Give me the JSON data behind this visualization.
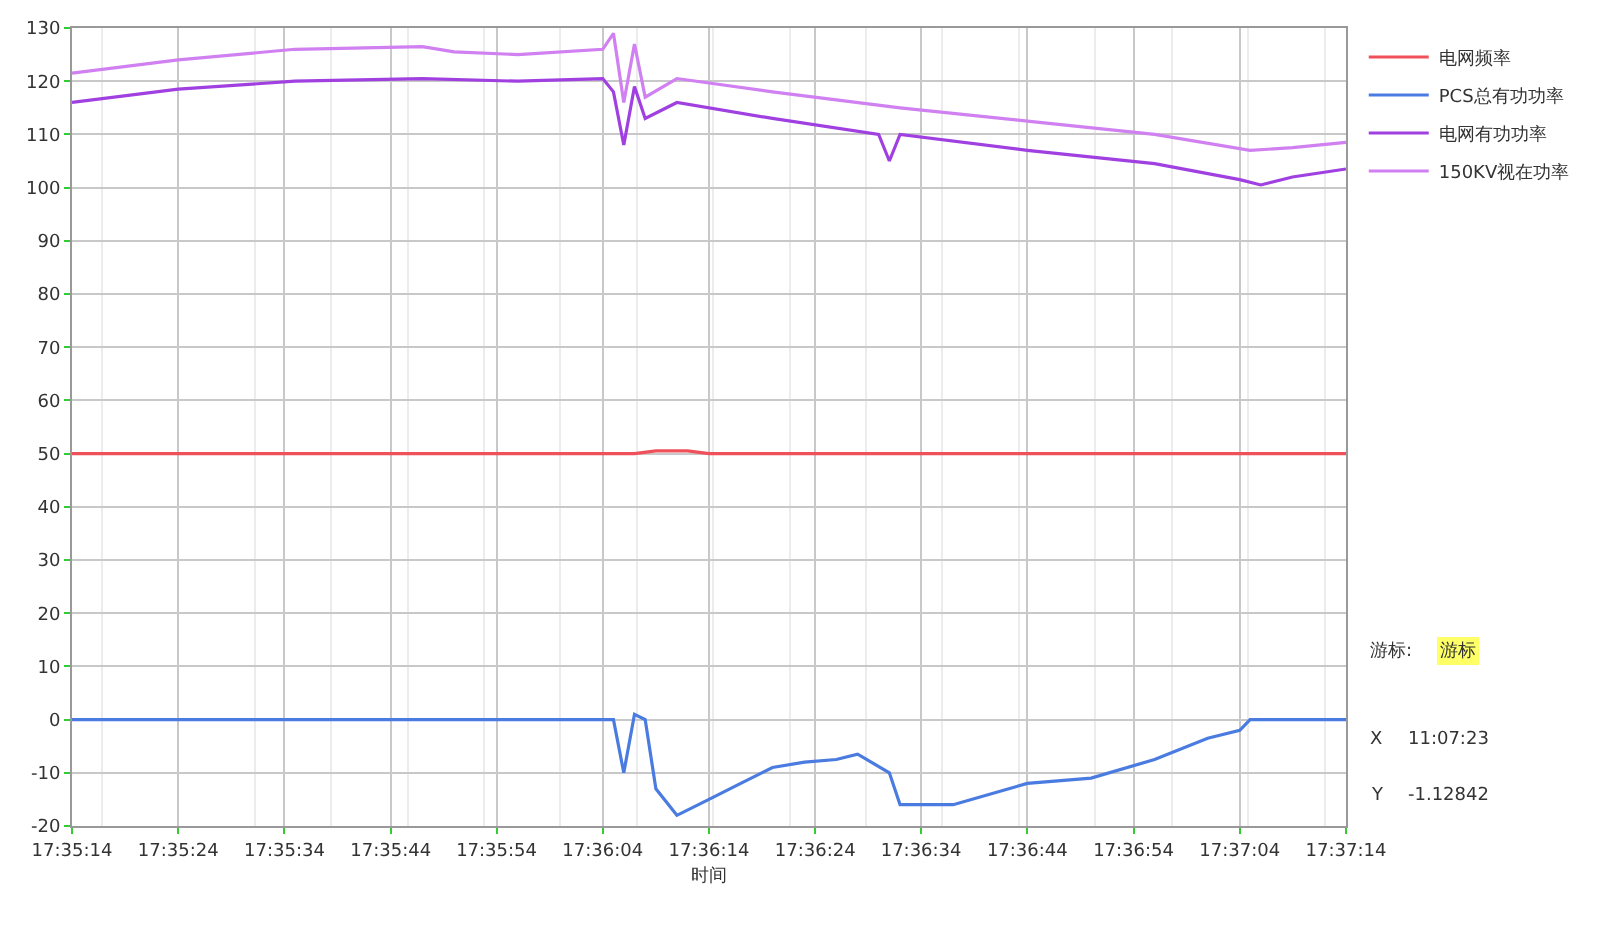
{
  "chart_data": {
    "type": "line",
    "xlabel": "时间",
    "xlim": [
      17.58722,
      17.62056
    ],
    "ylim": [
      -20,
      130
    ],
    "xticks": [
      {
        "value": 17.58722,
        "label": "17:35:14"
      },
      {
        "value": 17.59,
        "label": "17:35:24"
      },
      {
        "value": 17.59278,
        "label": "17:35:34"
      },
      {
        "value": 17.59556,
        "label": "17:35:44"
      },
      {
        "value": 17.59833,
        "label": "17:35:54"
      },
      {
        "value": 17.60111,
        "label": "17:36:04"
      },
      {
        "value": 17.60389,
        "label": "17:36:14"
      },
      {
        "value": 17.60667,
        "label": "17:36:24"
      },
      {
        "value": 17.60944,
        "label": "17:36:34"
      },
      {
        "value": 17.61222,
        "label": "17:36:44"
      },
      {
        "value": 17.615,
        "label": "17:36:54"
      },
      {
        "value": 17.61778,
        "label": "17:37:04"
      },
      {
        "value": 17.62056,
        "label": "17:37:14"
      }
    ],
    "yticks": [
      -20,
      -10,
      0,
      10,
      20,
      30,
      40,
      50,
      60,
      70,
      80,
      90,
      100,
      110,
      120,
      130
    ],
    "grid": true,
    "legend": "right",
    "line_style": "solid",
    "marker": "none",
    "series": [
      {
        "name": "电网频率",
        "color": "#f0505a",
        "x": [
          17.58722,
          17.60194,
          17.6025,
          17.60333,
          17.60389,
          17.62056
        ],
        "values": [
          50,
          50,
          50.5,
          50.5,
          50,
          50
        ]
      },
      {
        "name": "PCS总有功功率",
        "color": "#4a7be0",
        "x": [
          17.58722,
          17.60111,
          17.60139,
          17.60166,
          17.60194,
          17.60222,
          17.6025,
          17.60305,
          17.60389,
          17.60472,
          17.60555,
          17.60639,
          17.60722,
          17.60778,
          17.60861,
          17.60889,
          17.60944,
          17.61028,
          17.61222,
          17.61389,
          17.61555,
          17.61694,
          17.61778,
          17.61805,
          17.62056
        ],
        "values": [
          0,
          0,
          0,
          -10,
          1,
          0,
          -13,
          -18,
          -15,
          -12,
          -9,
          -8,
          -7.5,
          -6.5,
          -10,
          -16,
          -16,
          -16,
          -12,
          -11,
          -7.5,
          -3.5,
          -2,
          0,
          0
        ]
      },
      {
        "name": "电网有功功率",
        "color": "#a040e0",
        "x": [
          17.58722,
          17.59,
          17.59305,
          17.59639,
          17.59889,
          17.60111,
          17.60139,
          17.60166,
          17.60194,
          17.60222,
          17.60305,
          17.60555,
          17.60833,
          17.60861,
          17.60889,
          17.61222,
          17.61555,
          17.61778,
          17.61833,
          17.61916,
          17.62056
        ],
        "values": [
          116,
          118.5,
          120,
          120.5,
          120,
          120.5,
          118,
          108,
          119,
          113,
          116,
          113,
          110,
          105,
          110,
          107,
          104.5,
          101.5,
          100.5,
          102,
          103.5
        ]
      },
      {
        "name": "150KV视在功率",
        "color": "#d080f0",
        "x": [
          17.58722,
          17.59,
          17.59305,
          17.59639,
          17.59722,
          17.59889,
          17.60111,
          17.60139,
          17.60166,
          17.60194,
          17.60222,
          17.60305,
          17.60555,
          17.60889,
          17.61222,
          17.61555,
          17.61805,
          17.61916,
          17.62056
        ],
        "values": [
          121.5,
          124,
          126,
          126.5,
          125.5,
          125,
          126,
          129,
          116,
          127,
          117,
          120.5,
          118,
          115,
          112.5,
          110,
          107,
          107.5,
          108.5
        ]
      }
    ],
    "annotations": [
      "游标:",
      "X",
      "Y",
      "游标",
      "11:07:23",
      "-1.12842"
    ]
  }
}
